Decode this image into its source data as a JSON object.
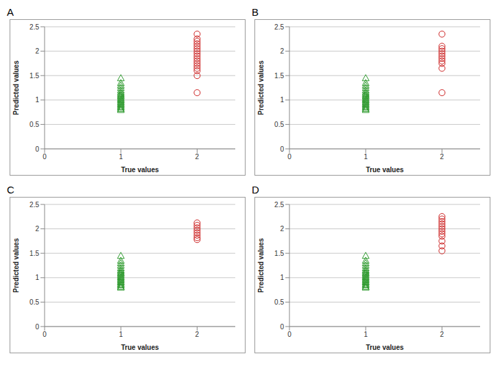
{
  "chart_data": [
    {
      "type": "scatter",
      "title": "A",
      "x_label": "True values",
      "y_label": "Predicted values",
      "xlim": [
        0,
        2.5
      ],
      "xticks": [
        0,
        1,
        2
      ],
      "ylim": [
        0,
        2.5
      ],
      "yticks": [
        0,
        0.5,
        1,
        1.5,
        2,
        2.5
      ],
      "grid": true,
      "series": [
        {
          "color": "#2e9a2e",
          "marker": "triangle",
          "x": [
            1,
            1,
            1,
            1,
            1,
            1,
            1,
            1,
            1,
            1,
            1,
            1,
            1,
            1,
            1,
            1,
            1,
            1,
            1,
            1
          ],
          "values": [
            0.8,
            0.82,
            0.85,
            0.87,
            0.9,
            0.92,
            0.95,
            0.97,
            1.0,
            1.02,
            1.05,
            1.08,
            1.1,
            1.13,
            1.16,
            1.2,
            1.25,
            1.3,
            1.35,
            1.45
          ]
        },
        {
          "color": "#cc1f1f",
          "marker": "circle",
          "x": [
            2,
            2,
            2,
            2,
            2,
            2,
            2,
            2,
            2,
            2,
            2,
            2,
            2,
            2,
            2,
            2,
            2
          ],
          "values": [
            1.15,
            1.5,
            1.6,
            1.65,
            1.7,
            1.75,
            1.8,
            1.85,
            1.9,
            1.95,
            2.0,
            2.05,
            2.1,
            2.15,
            2.2,
            2.25,
            2.35
          ]
        }
      ]
    },
    {
      "type": "scatter",
      "title": "B",
      "x_label": "True values",
      "y_label": "Predicted values",
      "xlim": [
        0,
        2.5
      ],
      "xticks": [
        0,
        1,
        2
      ],
      "ylim": [
        0,
        2.5
      ],
      "yticks": [
        0,
        0.5,
        1,
        1.5,
        2,
        2.5
      ],
      "grid": true,
      "series": [
        {
          "color": "#2e9a2e",
          "marker": "triangle",
          "x": [
            1,
            1,
            1,
            1,
            1,
            1,
            1,
            1,
            1,
            1,
            1,
            1,
            1,
            1,
            1,
            1,
            1,
            1,
            1,
            1
          ],
          "values": [
            0.8,
            0.82,
            0.85,
            0.87,
            0.9,
            0.92,
            0.95,
            0.97,
            1.0,
            1.02,
            1.05,
            1.08,
            1.1,
            1.13,
            1.16,
            1.2,
            1.25,
            1.3,
            1.35,
            1.45
          ]
        },
        {
          "color": "#cc1f1f",
          "marker": "circle",
          "x": [
            2,
            2,
            2,
            2,
            2,
            2,
            2,
            2,
            2,
            2,
            2
          ],
          "values": [
            1.15,
            1.65,
            1.75,
            1.8,
            1.85,
            1.9,
            1.95,
            2.0,
            2.05,
            2.1,
            2.35
          ]
        }
      ]
    },
    {
      "type": "scatter",
      "title": "C",
      "x_label": "True values",
      "y_label": "Predicted values",
      "xlim": [
        0,
        2.5
      ],
      "xticks": [
        0,
        1,
        2
      ],
      "ylim": [
        0,
        2.5
      ],
      "yticks": [
        0,
        0.5,
        1,
        1.5,
        2,
        2.5
      ],
      "grid": true,
      "series": [
        {
          "color": "#2e9a2e",
          "marker": "triangle",
          "x": [
            1,
            1,
            1,
            1,
            1,
            1,
            1,
            1,
            1,
            1,
            1,
            1,
            1,
            1,
            1,
            1,
            1,
            1,
            1,
            1
          ],
          "values": [
            0.8,
            0.82,
            0.85,
            0.87,
            0.9,
            0.92,
            0.95,
            0.97,
            1.0,
            1.02,
            1.05,
            1.08,
            1.1,
            1.13,
            1.16,
            1.2,
            1.25,
            1.3,
            1.35,
            1.45
          ]
        },
        {
          "color": "#cc1f1f",
          "marker": "circle",
          "x": [
            2,
            2,
            2,
            2,
            2,
            2,
            2,
            2
          ],
          "values": [
            1.78,
            1.82,
            1.87,
            1.92,
            1.97,
            2.02,
            2.07,
            2.12
          ]
        }
      ]
    },
    {
      "type": "scatter",
      "title": "D",
      "x_label": "True values",
      "y_label": "Predicted values",
      "xlim": [
        0,
        2.5
      ],
      "xticks": [
        0,
        1,
        2
      ],
      "ylim": [
        0,
        2.5
      ],
      "yticks": [
        0,
        0.5,
        1,
        1.5,
        2,
        2.5
      ],
      "grid": true,
      "series": [
        {
          "color": "#2e9a2e",
          "marker": "triangle",
          "x": [
            1,
            1,
            1,
            1,
            1,
            1,
            1,
            1,
            1,
            1,
            1,
            1,
            1,
            1,
            1,
            1,
            1,
            1,
            1,
            1
          ],
          "values": [
            0.8,
            0.82,
            0.85,
            0.87,
            0.9,
            0.92,
            0.95,
            0.97,
            1.0,
            1.02,
            1.05,
            1.08,
            1.1,
            1.13,
            1.16,
            1.2,
            1.25,
            1.3,
            1.35,
            1.45
          ]
        },
        {
          "color": "#cc1f1f",
          "marker": "circle",
          "x": [
            2,
            2,
            2,
            2,
            2,
            2,
            2,
            2,
            2,
            2,
            2,
            2
          ],
          "values": [
            1.55,
            1.65,
            1.75,
            1.85,
            1.9,
            1.95,
            2.0,
            2.05,
            2.1,
            2.15,
            2.2,
            2.25
          ]
        }
      ]
    }
  ]
}
